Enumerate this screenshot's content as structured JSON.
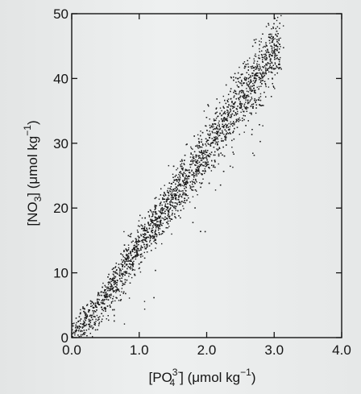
{
  "chart_data": {
    "type": "scatter",
    "title": "",
    "x_axis": {
      "label_main": "[PO",
      "label_sub": "4",
      "label_sup": "3−",
      "label_close": "] (μmol kg",
      "label_exp": "−1",
      "label_end": ")",
      "range": [
        0.0,
        4.0
      ],
      "ticks": [
        0.0,
        1.0,
        2.0,
        3.0,
        4.0
      ],
      "tick_labels": [
        "0.0",
        "1.0",
        "2.0",
        "3.0",
        "4.0"
      ]
    },
    "y_axis": {
      "label_main": "[NO",
      "label_sub": "3",
      "label_close": "] (μmol kg",
      "label_exp": "−1",
      "label_end": ")",
      "range": [
        0,
        50
      ],
      "ticks": [
        0,
        10,
        20,
        30,
        40,
        50
      ],
      "tick_labels": [
        "0",
        "10",
        "20",
        "30",
        "40",
        "50"
      ]
    },
    "grid": false,
    "series": [
      {
        "trend": {
          "slope": 15.0,
          "intercept": -0.5
        },
        "band_points": [
          {
            "x": 0.0,
            "y": 0
          },
          {
            "x": 0.5,
            "y": 6.5
          },
          {
            "x": 1.0,
            "y": 14.5
          },
          {
            "x": 1.5,
            "y": 22
          },
          {
            "x": 2.0,
            "y": 29.5
          },
          {
            "x": 2.5,
            "y": 37
          },
          {
            "x": 3.0,
            "y": 44.5
          }
        ],
        "x_extent": [
          0.0,
          3.1
        ],
        "point_count": 4000,
        "color": "#1a1a1a"
      }
    ]
  }
}
